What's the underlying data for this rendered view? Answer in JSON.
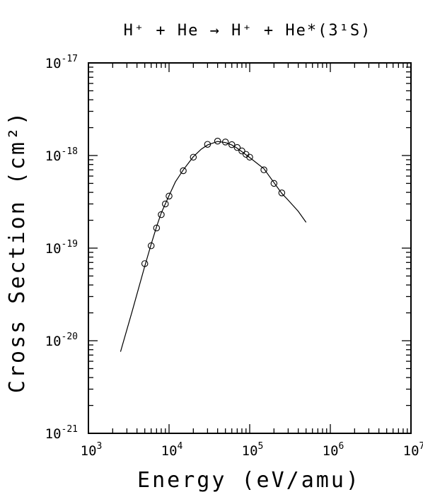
{
  "chart_data": {
    "type": "scatter",
    "title": "H⁺ + He → H⁺ + He*(3¹S)",
    "xlabel": "Energy (eV/amu)",
    "ylabel": "Cross Section (cm²)",
    "x_scale": "log",
    "y_scale": "log",
    "xlim": [
      1000,
      10000000
    ],
    "ylim": [
      1e-21,
      1e-17
    ],
    "grid": false,
    "x_ticks": [
      {
        "base": "10",
        "exp": "3"
      },
      {
        "base": "10",
        "exp": "4"
      },
      {
        "base": "10",
        "exp": "5"
      },
      {
        "base": "10",
        "exp": "6"
      },
      {
        "base": "10",
        "exp": "7"
      }
    ],
    "y_ticks": [
      {
        "base": "10",
        "exp": "-21"
      },
      {
        "base": "10",
        "exp": "-20"
      },
      {
        "base": "10",
        "exp": "-19"
      },
      {
        "base": "10",
        "exp": "-18"
      },
      {
        "base": "10",
        "exp": "-17"
      }
    ],
    "series": [
      {
        "style": "line",
        "x": [
          2500,
          3500,
          5000,
          6000,
          7000,
          8000,
          10000,
          12000,
          15000,
          20000,
          25000,
          30000,
          40000,
          50000,
          60000,
          70000,
          80000,
          100000,
          150000,
          200000,
          250000,
          300000,
          400000,
          500000
        ],
        "y": [
          7.6e-21,
          2.1e-20,
          6.4e-20,
          1.1e-19,
          1.7e-19,
          2.4e-19,
          3.7e-19,
          5.2e-19,
          7e-19,
          9.7e-19,
          1.17e-18,
          1.3e-18,
          1.42e-18,
          1.38e-18,
          1.3e-18,
          1.2e-18,
          1.1e-18,
          9.5e-19,
          7.2e-19,
          5.1e-19,
          3.9e-19,
          3.3e-19,
          2.5e-19,
          1.9e-19
        ]
      },
      {
        "style": "markers",
        "marker": "open-circle",
        "x": [
          5000,
          6000,
          7000,
          8000,
          9000,
          10000,
          15000,
          20000,
          30000,
          40000,
          50000,
          60000,
          70000,
          80000,
          90000,
          100000,
          150000,
          200000,
          250000
        ],
        "y": [
          6.8e-20,
          1.06e-19,
          1.65e-19,
          2.3e-19,
          3e-19,
          3.65e-19,
          6.85e-19,
          9.6e-19,
          1.32e-18,
          1.43e-18,
          1.4e-18,
          1.31e-18,
          1.22e-18,
          1.12e-18,
          1.03e-18,
          9.6e-19,
          7e-19,
          5e-19,
          3.95e-19
        ]
      }
    ]
  }
}
